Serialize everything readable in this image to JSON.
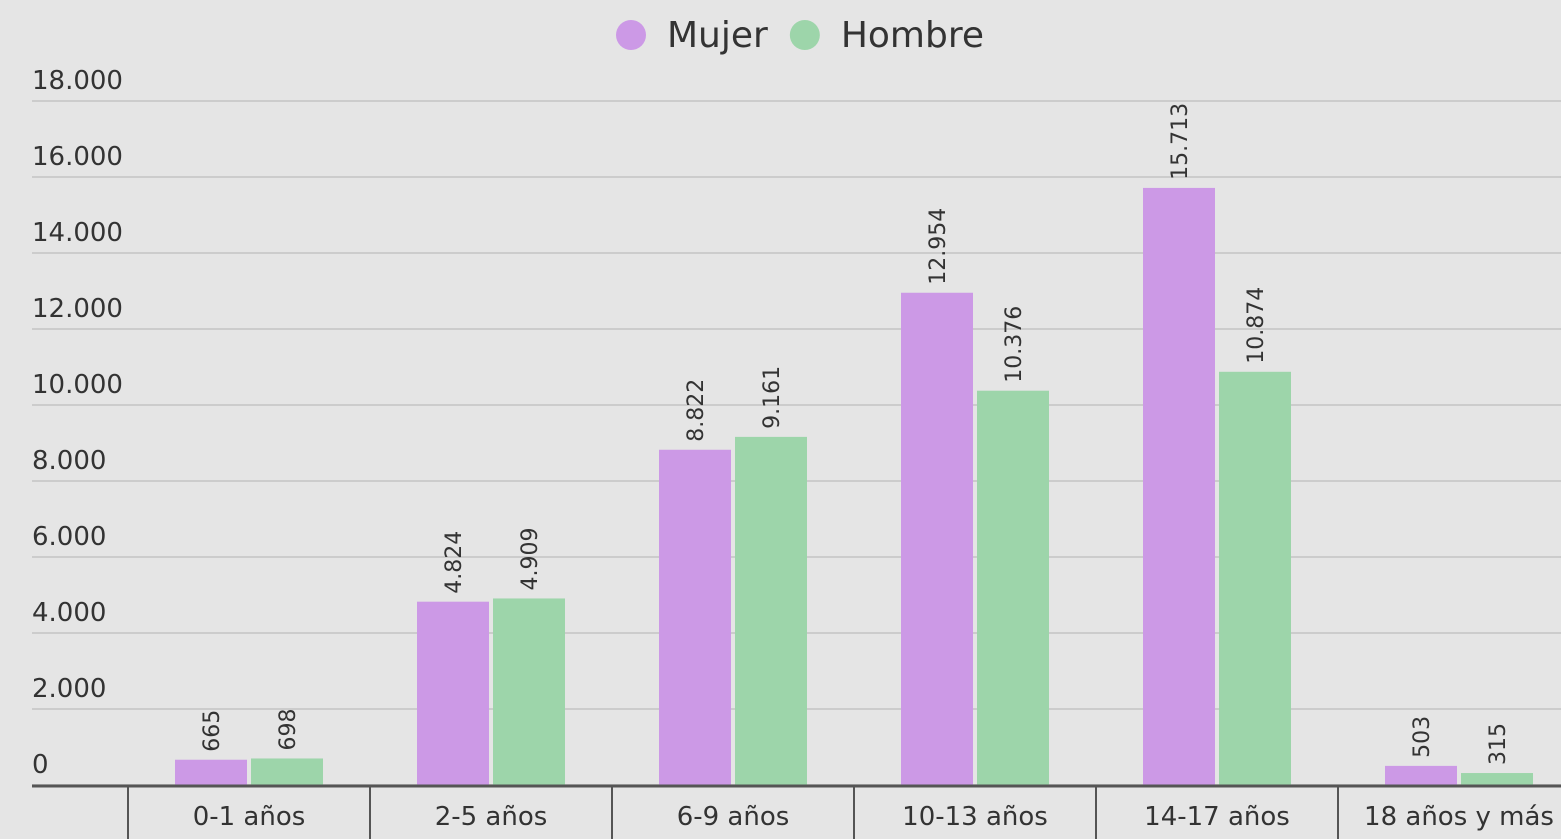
{
  "chart_data": {
    "type": "bar",
    "categories": [
      "0-1 años",
      "2-5 años",
      "6-9 años",
      "10-13 años",
      "14-17 años",
      "18 años y más"
    ],
    "series": [
      {
        "name": "Mujer",
        "color": "#cc99e6",
        "values": [
          665,
          4824,
          8822,
          12954,
          15713,
          503
        ],
        "value_labels": [
          "665",
          "4.824",
          "8.822",
          "12.954",
          "15.713",
          "503"
        ]
      },
      {
        "name": "Hombre",
        "color": "#9dd5aa",
        "values": [
          698,
          4909,
          9161,
          10376,
          10874,
          315
        ],
        "value_labels": [
          "698",
          "4.909",
          "9.161",
          "10.376",
          "10.874",
          "315"
        ]
      }
    ],
    "ylim": [
      0,
      18000
    ],
    "yticks": [
      0,
      {
        "value": 2000,
        "label": "2.000"
      },
      {
        "value": 4000,
        "label": "4.000"
      },
      {
        "value": 6000,
        "label": "6.000"
      },
      {
        "value": 8000,
        "label": "8.000"
      },
      {
        "value": 10000,
        "label": "10.000"
      },
      {
        "value": 12000,
        "label": "12.000"
      },
      {
        "value": 14000,
        "label": "14.000"
      },
      {
        "value": 16000,
        "label": "16.000"
      },
      {
        "value": 18000,
        "label": "18.000"
      }
    ],
    "grid": true,
    "legend": "top"
  }
}
